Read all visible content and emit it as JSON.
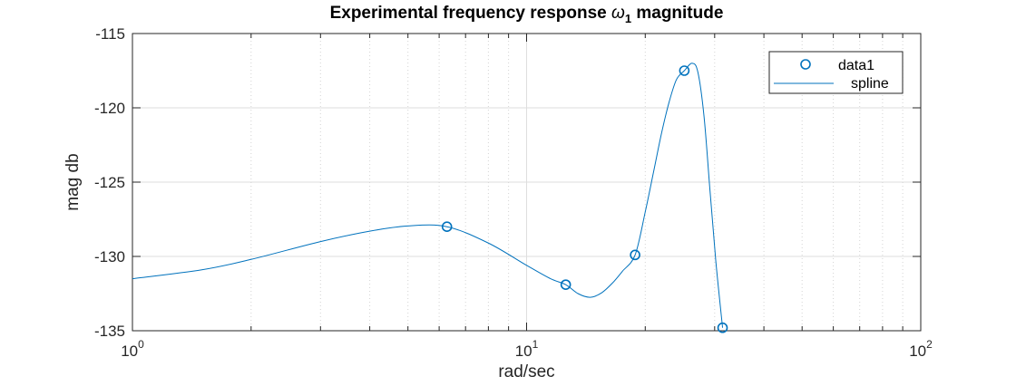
{
  "chart_data": {
    "type": "line",
    "title": {
      "prefix": "Experimental frequency response ",
      "symbol": "ω",
      "subscript": "1",
      "suffix": " magnitude"
    },
    "xlabel": "rad/sec",
    "ylabel": "mag db",
    "x_scale": "log",
    "xlim": [
      1,
      100
    ],
    "ylim": [
      -135,
      -115
    ],
    "x_ticks": [
      {
        "value": 1,
        "base": "10",
        "exp": "0"
      },
      {
        "value": 10,
        "base": "10",
        "exp": "1"
      },
      {
        "value": 100,
        "base": "10",
        "exp": "2"
      }
    ],
    "y_ticks": [
      -115,
      -120,
      -125,
      -130,
      -135
    ],
    "y_tick_labels": [
      "-115",
      "-120",
      "-125",
      "-130",
      "-135"
    ],
    "grid": true,
    "minor_grid_x": true,
    "legend_position": "top-right",
    "series": [
      {
        "name": "data1",
        "style": "markers-circle",
        "color": "#0072BD",
        "x": [
          6.28,
          12.57,
          18.85,
          25.13,
          31.42
        ],
        "y": [
          -128.0,
          -131.9,
          -129.9,
          -117.5,
          -134.8
        ]
      },
      {
        "name": "spline",
        "style": "line",
        "color": "#0072BD",
        "x": [
          1.0,
          1.5,
          2.0,
          3.0,
          4.0,
          5.0,
          6.28,
          8.0,
          10.0,
          11.5,
          12.57,
          13.5,
          14.5,
          15.5,
          16.5,
          17.5,
          18.85,
          20.0,
          21.0,
          22.0,
          23.0,
          24.0,
          25.13,
          26.3,
          27.2,
          28.2,
          29.2,
          30.2,
          31.42
        ],
        "y": [
          -131.5,
          -130.9,
          -130.2,
          -129.0,
          -128.3,
          -127.95,
          -128.0,
          -129.1,
          -130.6,
          -131.5,
          -131.9,
          -132.5,
          -132.75,
          -132.45,
          -131.8,
          -131.0,
          -129.9,
          -127.0,
          -124.3,
          -121.7,
          -119.6,
          -118.1,
          -117.5,
          -117.0,
          -117.6,
          -120.6,
          -125.6,
          -130.3,
          -134.8
        ]
      }
    ]
  }
}
